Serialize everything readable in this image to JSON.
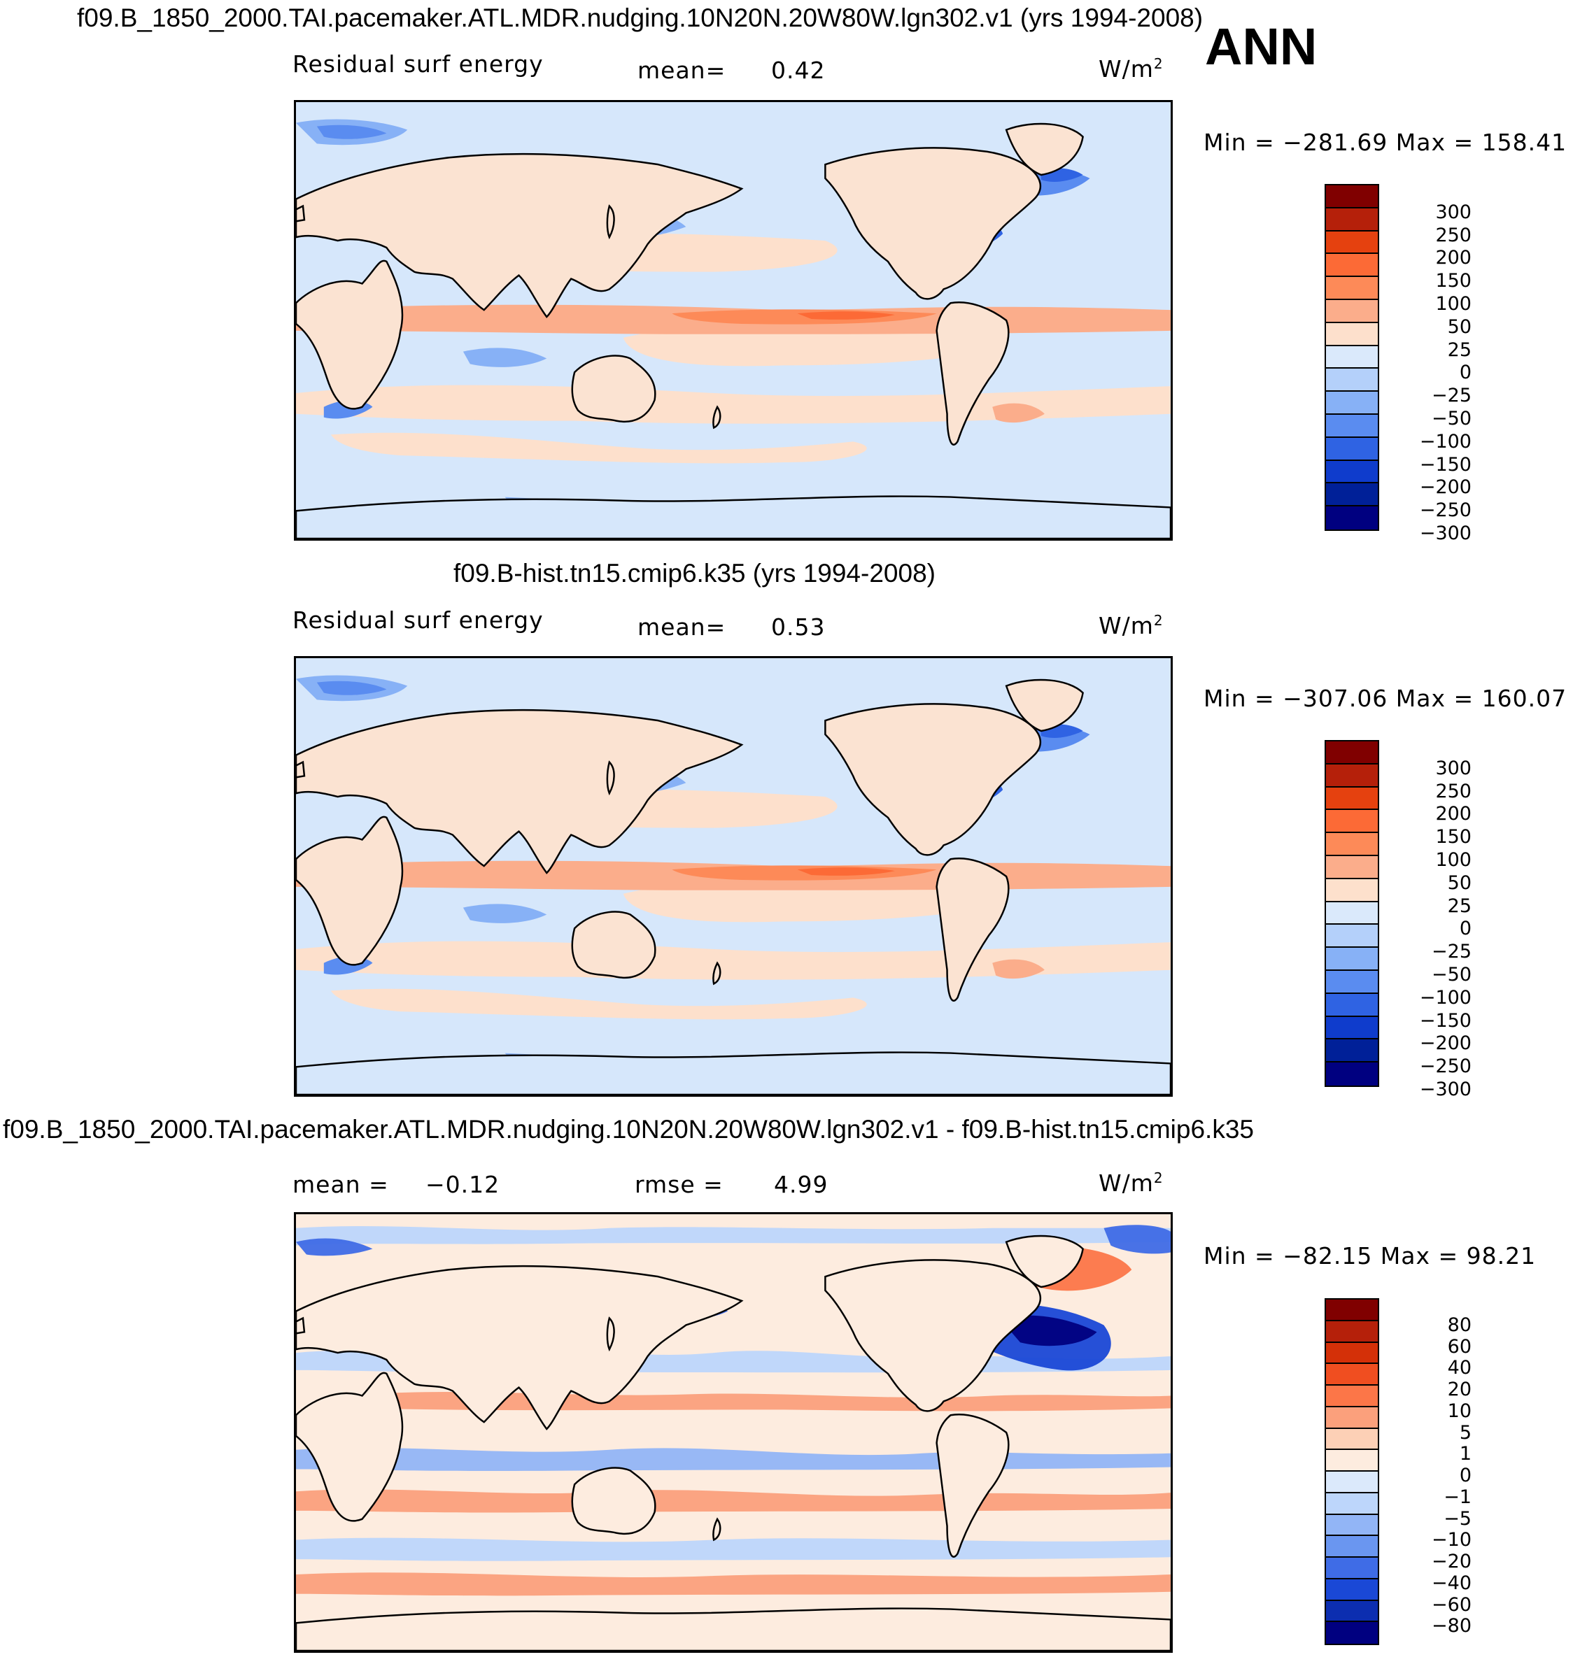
{
  "season": "ANN",
  "colors": {
    "top_palette": [
      "#800000",
      "#b5200a",
      "#e5410f",
      "#fc6a36",
      "#fd8a58",
      "#fbad8b",
      "#fde0cc",
      "#dae9fb",
      "#b4d0fa",
      "#87b1f6",
      "#5a8cf0",
      "#2f63e3",
      "#0f3ccc",
      "#002098",
      "#000080"
    ],
    "diff_palette": [
      "#800000",
      "#b5200a",
      "#d43008",
      "#f04e20",
      "#fc7648",
      "#fba07c",
      "#fdd0b6",
      "#fdecdf",
      "#dbe9fb",
      "#bdd6fb",
      "#92b5f6",
      "#6a96f0",
      "#3f6ce6",
      "#1a48d6",
      "#0c2eb0",
      "#000080"
    ],
    "land_fill": "#fbe3d2",
    "ocean_fill": "#d6e7fb",
    "coast": "#000000"
  },
  "panels": [
    {
      "title": "f09.B_1850_2000.TAI.pacemaker.ATL.MDR.nudging.10N20N.20W80W.lgn302.v1 (yrs 1994-2008)",
      "left_label": "Residual surf energy",
      "center_label": "mean=",
      "center_value": "0.42",
      "unit_base": "W/m",
      "unit_exp": "2",
      "minmax": "Min = −281.69 Max = 158.41",
      "colorbar_ticks": [
        "300",
        "250",
        "200",
        "150",
        "100",
        "50",
        "25",
        "0",
        "−25",
        "−50",
        "−100",
        "−150",
        "−200",
        "−250",
        "−300"
      ]
    },
    {
      "title": "f09.B-hist.tn15.cmip6.k35 (yrs 1994-2008)",
      "left_label": "Residual surf energy",
      "center_label": "mean=",
      "center_value": "0.53",
      "unit_base": "W/m",
      "unit_exp": "2",
      "minmax": "Min = −307.06 Max = 160.07",
      "colorbar_ticks": [
        "300",
        "250",
        "200",
        "150",
        "100",
        "50",
        "25",
        "0",
        "−25",
        "−50",
        "−100",
        "−150",
        "−200",
        "−250",
        "−300"
      ]
    },
    {
      "title": "f09.B_1850_2000.TAI.pacemaker.ATL.MDR.nudging.10N20N.20W80W.lgn302.v1 - f09.B-hist.tn15.cmip6.k35",
      "left_label": "mean =",
      "left_value": "−0.12",
      "center_label": "rmse =",
      "center_value": "4.99",
      "unit_base": "W/m",
      "unit_exp": "2",
      "minmax": "Min = −82.15 Max =  98.21",
      "colorbar_ticks": [
        "80",
        "60",
        "40",
        "20",
        "10",
        "5",
        "1",
        "0",
        "−1",
        "−5",
        "−10",
        "−20",
        "−40",
        "−60",
        "−80"
      ]
    }
  ]
}
